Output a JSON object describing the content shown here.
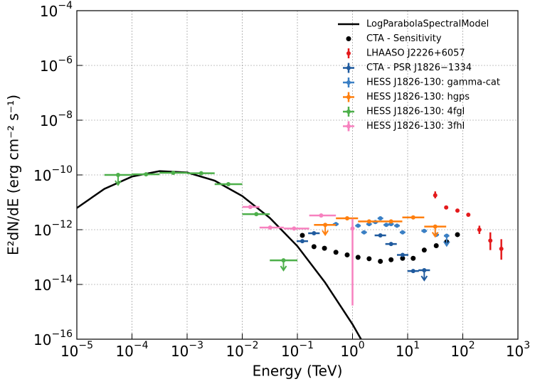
{
  "chart_data": {
    "type": "errorbar",
    "x_label": "Energy (TeV)",
    "y_label": "E²dN/dE (erg cm⁻² s⁻¹)",
    "xscale": "log",
    "yscale": "log",
    "grid": true,
    "legend": "upper right",
    "xlim": [
      1e-05,
      1000
    ],
    "ylim": [
      1e-16,
      0.0001
    ],
    "xticks": [
      {
        "value": 1e-05,
        "label": "10−5"
      },
      {
        "value": 0.0001,
        "label": "10−4"
      },
      {
        "value": 0.001,
        "label": "10−3"
      },
      {
        "value": 0.01,
        "label": "10−2"
      },
      {
        "value": 0.1,
        "label": "10−1"
      },
      {
        "value": 1,
        "label": "100"
      },
      {
        "value": 10,
        "label": "101"
      },
      {
        "value": 100,
        "label": "102"
      },
      {
        "value": 1000,
        "label": "103"
      }
    ],
    "yticks": [
      {
        "value": 1e-16,
        "label": "10−16"
      },
      {
        "value": 1e-14,
        "label": "10−14"
      },
      {
        "value": 1e-12,
        "label": "10−12"
      },
      {
        "value": 1e-10,
        "label": "10−10"
      },
      {
        "value": 1e-08,
        "label": "10−8"
      },
      {
        "value": 1e-06,
        "label": "10−6"
      },
      {
        "value": 0.0001,
        "label": "10−4"
      }
    ],
    "series": [
      {
        "name": "LogParabolaSpectralModel",
        "type": "line",
        "color": "#000000",
        "x": [
          1e-05,
          3.16e-05,
          0.0001,
          0.000316,
          0.001,
          0.00316,
          0.01,
          0.0316,
          0.1,
          0.316,
          1,
          1.58
        ],
        "values": [
          6.2e-12,
          3.1e-11,
          8.7e-11,
          1.38e-10,
          1.23e-10,
          6.2e-11,
          1.7e-11,
          2.7e-12,
          2.5e-13,
          1.2e-14,
          3.5e-16,
          7e-17
        ]
      },
      {
        "name": "CTA - Sensitivity",
        "type": "scatter",
        "color": "#000000",
        "x": [
          0.123,
          0.2,
          0.31,
          0.5,
          0.8,
          1.26,
          2.0,
          3.2,
          5.0,
          8.1,
          12.6,
          20,
          33,
          51,
          80
        ],
        "values": [
          6.2e-13,
          2.4e-13,
          2.1e-13,
          1.5e-13,
          1.2e-13,
          9.8e-14,
          8.7e-14,
          7e-14,
          8e-14,
          9e-14,
          9e-14,
          1.8e-13,
          2.6e-13,
          3.6e-13,
          6.6e-13
        ]
      },
      {
        "name": "LHAASO J2226+6057",
        "type": "errorbar",
        "color": "#e41a1c",
        "x": [
          31.6,
          50,
          80,
          126,
          200,
          316,
          500
        ],
        "values": [
          1.8e-11,
          6.5e-12,
          5e-12,
          3.5e-12,
          1e-12,
          4e-13,
          2e-13
        ],
        "y_low": [
          1.4e-11,
          null,
          null,
          null,
          7e-13,
          1.8e-13,
          8e-14
        ],
        "y_high": [
          2.5e-11,
          null,
          null,
          null,
          1.4e-12,
          8e-13,
          4.5e-13
        ]
      },
      {
        "name": "CTA - PSR J1826−1334",
        "type": "errorbar",
        "color": "#1f5a9e",
        "x": [
          0.123,
          0.2,
          3.2,
          5.0,
          8.1,
          12.6,
          20
        ],
        "values": [
          3.8e-13,
          7.4e-13,
          6.2e-13,
          3e-13,
          1.2e-13,
          3.1e-14,
          3.3e-14
        ],
        "x_low": [
          0.097,
          0.157,
          2.52,
          3.94,
          6.4,
          9.9,
          15.7
        ],
        "x_high": [
          0.156,
          0.254,
          4.06,
          6.35,
          10.3,
          16,
          25.4
        ],
        "upper_limits": [
          false,
          false,
          false,
          false,
          false,
          false,
          true
        ]
      },
      {
        "name": "HESS J1826-130: gamma-cat",
        "type": "errorbar",
        "color": "#3a7fc4",
        "x": [
          0.5,
          1.26,
          1.62,
          2.0,
          2.6,
          3.2,
          4.1,
          5.0,
          6.4,
          8.1,
          20,
          33,
          51
        ],
        "values": [
          1.6e-12,
          1.4e-12,
          8e-13,
          1.6e-12,
          1.9e-12,
          2.6e-12,
          1.5e-12,
          1.6e-12,
          1.4e-12,
          8e-13,
          9e-13,
          6.5e-13,
          6e-13
        ],
        "x_low": [
          0.44,
          1.12,
          1.44,
          1.78,
          2.3,
          2.85,
          3.65,
          4.45,
          5.7,
          7.2,
          17.8,
          29.4,
          45.4
        ],
        "x_high": [
          0.56,
          1.41,
          1.82,
          2.24,
          2.9,
          3.6,
          4.6,
          5.6,
          7.2,
          9.1,
          22.4,
          37,
          57
        ],
        "upper_limits": [
          false,
          false,
          false,
          false,
          false,
          false,
          false,
          false,
          false,
          false,
          false,
          false,
          true
        ]
      },
      {
        "name": "HESS J1826-130: hgps",
        "type": "errorbar",
        "color": "#ff7f0e",
        "x": [
          0.32,
          0.8,
          2.0,
          5.0,
          12.6,
          31.6
        ],
        "values": [
          1.5e-12,
          2.6e-12,
          2e-12,
          2e-12,
          2.8e-12,
          1.3e-12
        ],
        "x_low": [
          0.2,
          0.5,
          1.26,
          3.2,
          8,
          20
        ],
        "x_high": [
          0.5,
          1.26,
          3.2,
          8,
          20,
          50
        ],
        "upper_limits": [
          true,
          false,
          false,
          false,
          false,
          true
        ]
      },
      {
        "name": "HESS J1826-130: 4fgl",
        "type": "errorbar",
        "color": "#4daf4a",
        "x": [
          5.6e-05,
          0.00018,
          0.00056,
          0.0018,
          0.0056,
          0.018,
          0.056
        ],
        "values": [
          1e-10,
          1.05e-10,
          1.2e-10,
          1.15e-10,
          4.6e-11,
          3.7e-12,
          7.6e-14
        ],
        "x_low": [
          3.16e-05,
          0.0001,
          0.000316,
          0.001,
          0.00316,
          0.01,
          0.0316
        ],
        "x_high": [
          0.0001,
          0.000316,
          0.001,
          0.00316,
          0.01,
          0.0316,
          0.1
        ],
        "upper_limits": [
          true,
          false,
          false,
          false,
          false,
          false,
          true
        ]
      },
      {
        "name": "HESS J1826-130: 3fhl",
        "type": "errorbar",
        "color": "#f781bf",
        "x": [
          0.014,
          0.032,
          0.087,
          0.27,
          1
        ],
        "values": [
          6.8e-12,
          1.2e-12,
          1.1e-12,
          3.3e-12,
          1.1e-12
        ],
        "x_low": [
          0.0101,
          0.0206,
          0.0566,
          0.164,
          null
        ],
        "x_high": [
          0.0206,
          0.0566,
          0.164,
          0.5,
          null
        ],
        "y_low": [
          null,
          null,
          null,
          null,
          1.7e-15
        ],
        "y_high": [
          null,
          null,
          null,
          null,
          2.5e-12
        ]
      }
    ]
  }
}
